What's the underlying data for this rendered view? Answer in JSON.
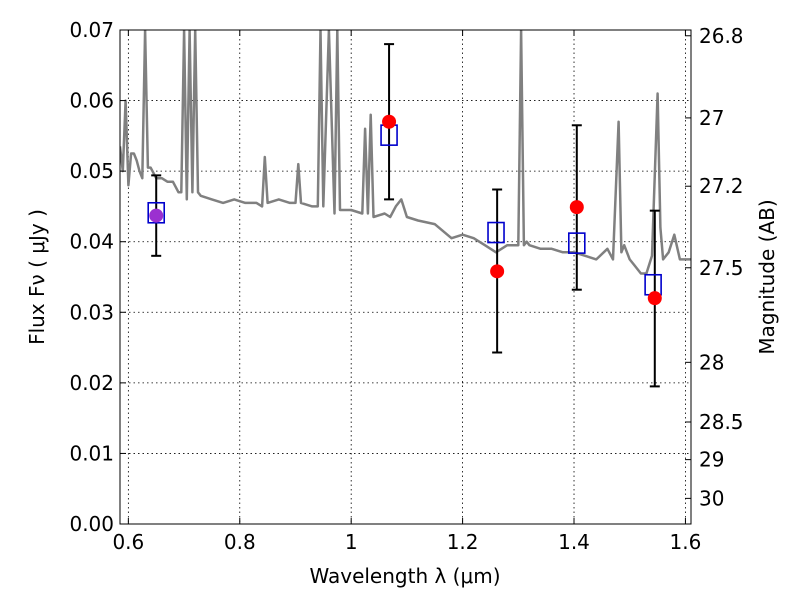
{
  "chart_data": {
    "type": "scatter",
    "title": "",
    "xlabel": "Wavelength  λ (μm)",
    "ylabel": "Flux  Fν  ( μJy )",
    "y2label": "Magnitude (AB)",
    "xlim": [
      0.585,
      1.61
    ],
    "ylim": [
      0.0,
      0.07
    ],
    "grid": true,
    "x_ticks": [
      0.6,
      0.8,
      1.0,
      1.2,
      1.4,
      1.6
    ],
    "x_tick_labels": [
      "0.6",
      "0.8",
      "1",
      "1.2",
      "1.4",
      "1.6"
    ],
    "y_ticks": [
      0.0,
      0.01,
      0.02,
      0.03,
      0.04,
      0.05,
      0.06,
      0.07
    ],
    "y_tick_labels": [
      "0.00",
      "0.01",
      "0.02",
      "0.03",
      "0.04",
      "0.05",
      "0.06",
      "0.07"
    ],
    "y2_ticks": [
      26.8,
      27,
      27.2,
      27.5,
      28,
      28.5,
      29,
      30
    ],
    "y2_tick_labels": [
      "26.8",
      "27",
      "27.2",
      "27.5",
      "28",
      "28.5",
      "29",
      "30"
    ],
    "series": [
      {
        "type": "line",
        "color": "#808080",
        "x": [
          0.585,
          0.59,
          0.595,
          0.6,
          0.605,
          0.61,
          0.615,
          0.62,
          0.625,
          0.63,
          0.635,
          0.64,
          0.65,
          0.66,
          0.67,
          0.68,
          0.69,
          0.695,
          0.7,
          0.705,
          0.71,
          0.715,
          0.72,
          0.725,
          0.73,
          0.75,
          0.77,
          0.79,
          0.81,
          0.83,
          0.84,
          0.845,
          0.85,
          0.87,
          0.89,
          0.9,
          0.905,
          0.91,
          0.93,
          0.94,
          0.945,
          0.95,
          0.96,
          0.97,
          0.975,
          0.98,
          1.0,
          1.02,
          1.025,
          1.03,
          1.035,
          1.04,
          1.06,
          1.07,
          1.08,
          1.09,
          1.1,
          1.12,
          1.15,
          1.18,
          1.2,
          1.22,
          1.24,
          1.26,
          1.28,
          1.3,
          1.305,
          1.31,
          1.315,
          1.32,
          1.34,
          1.36,
          1.38,
          1.4,
          1.42,
          1.44,
          1.46,
          1.47,
          1.48,
          1.485,
          1.49,
          1.5,
          1.51,
          1.52,
          1.53,
          1.54,
          1.55,
          1.555,
          1.56,
          1.57,
          1.58,
          1.59,
          1.6,
          1.61
        ],
        "y": [
          0.0535,
          0.05,
          0.06,
          0.048,
          0.0525,
          0.0525,
          0.0515,
          0.05,
          0.049,
          0.07,
          0.0505,
          0.0505,
          0.049,
          0.049,
          0.0485,
          0.0485,
          0.047,
          0.047,
          0.07,
          0.046,
          0.07,
          0.047,
          0.07,
          0.047,
          0.0465,
          0.046,
          0.0455,
          0.046,
          0.0455,
          0.0455,
          0.045,
          0.052,
          0.0455,
          0.046,
          0.0455,
          0.0455,
          0.051,
          0.0455,
          0.045,
          0.045,
          0.07,
          0.045,
          0.07,
          0.044,
          0.07,
          0.0445,
          0.0445,
          0.044,
          0.056,
          0.044,
          0.058,
          0.0435,
          0.044,
          0.0435,
          0.045,
          0.046,
          0.0435,
          0.043,
          0.0425,
          0.0405,
          0.041,
          0.0405,
          0.0395,
          0.0385,
          0.0395,
          0.0395,
          0.07,
          0.0395,
          0.04,
          0.0395,
          0.039,
          0.039,
          0.0385,
          0.0385,
          0.038,
          0.0375,
          0.039,
          0.0375,
          0.057,
          0.0385,
          0.0395,
          0.0375,
          0.0365,
          0.0355,
          0.0355,
          0.038,
          0.061,
          0.042,
          0.0375,
          0.0385,
          0.041,
          0.0375,
          0.0375,
          0.0375
        ]
      },
      {
        "name": "",
        "type": "errorbar",
        "marker": "circle",
        "color": "#ff0000",
        "x": [
          0.65,
          1.068,
          1.262,
          1.405,
          1.545
        ],
        "y": [
          0.0437,
          0.057,
          0.0358,
          0.0449,
          0.032
        ],
        "yerr_low": [
          0.038,
          0.046,
          0.0243,
          0.0332,
          0.0195
        ],
        "yerr_high": [
          0.0494,
          0.068,
          0.0474,
          0.0565,
          0.0444
        ]
      },
      {
        "name": "",
        "type": "scatter",
        "marker": "open-square",
        "color": "#0000cc",
        "x": [
          0.65,
          1.068,
          1.26,
          1.405,
          1.542
        ],
        "y": [
          0.0441,
          0.0551,
          0.0413,
          0.0398,
          0.0339
        ]
      }
    ],
    "overlap_marker_color": "#9b30d0"
  }
}
